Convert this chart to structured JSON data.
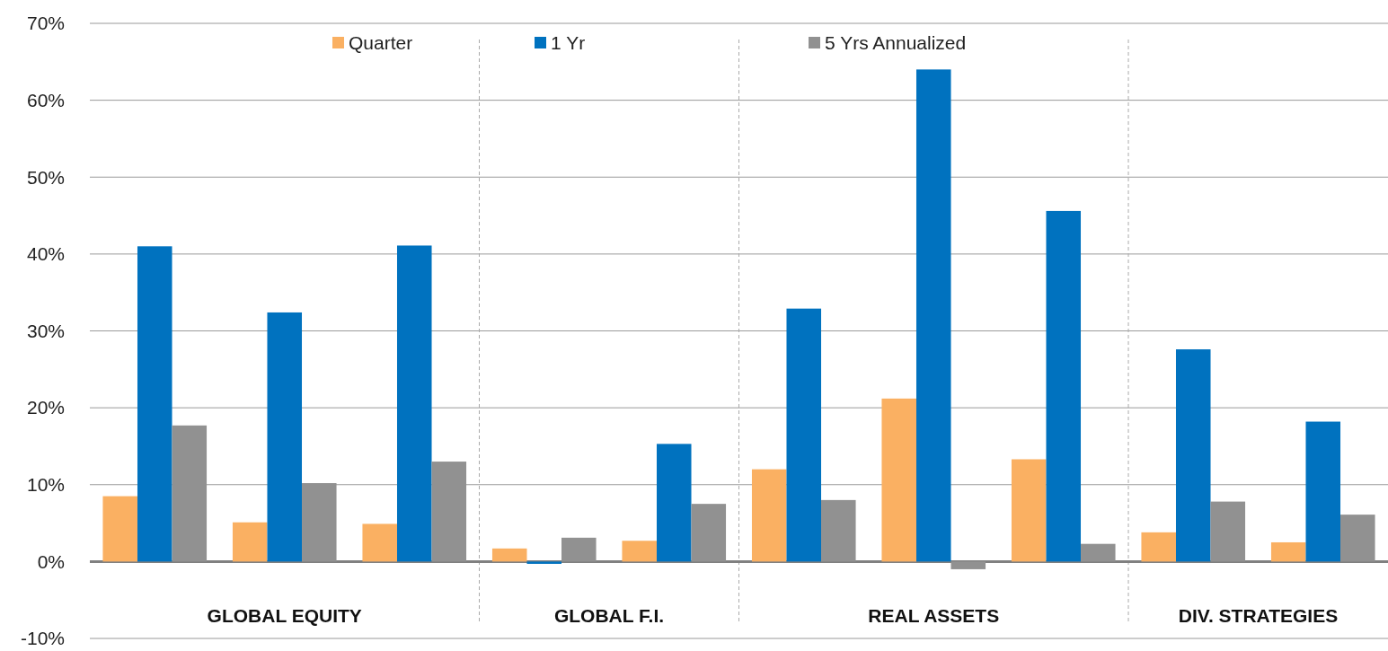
{
  "chart_data": {
    "type": "bar",
    "categories": [
      null,
      null,
      null,
      null,
      null,
      null,
      null,
      null,
      null,
      null
    ],
    "series": [
      {
        "name": "Quarter",
        "color": "#fab062",
        "values": [
          8.5,
          5.1,
          4.9,
          1.7,
          2.7,
          12.0,
          21.2,
          13.3,
          3.8,
          2.5
        ]
      },
      {
        "name": "1 Yr",
        "color": "#0072bf",
        "values": [
          41.0,
          32.4,
          41.1,
          -0.3,
          15.3,
          32.9,
          64.0,
          45.6,
          27.6,
          18.2
        ]
      },
      {
        "name": "5 Yrs Annualized",
        "color": "#919191",
        "values": [
          17.7,
          10.2,
          13.0,
          3.1,
          7.5,
          8.0,
          -1.0,
          2.3,
          7.8,
          6.1
        ]
      }
    ],
    "ylim": [
      -10,
      70
    ],
    "yticks": [
      {
        "value": -10,
        "label": "-10%"
      },
      {
        "value": 0,
        "label": "0%"
      },
      {
        "value": 10,
        "label": "10%"
      },
      {
        "value": 20,
        "label": "20%"
      },
      {
        "value": 30,
        "label": "30%"
      },
      {
        "value": 40,
        "label": "40%"
      },
      {
        "value": 50,
        "label": "50%"
      },
      {
        "value": 60,
        "label": "60%"
      },
      {
        "value": 70,
        "label": "70%"
      }
    ],
    "grid": "y",
    "legend": "top",
    "annotations": [
      "GLOBAL EQUITY",
      "GLOBAL F.I.",
      "REAL ASSETS",
      "DIV. STRATEGIES"
    ]
  }
}
